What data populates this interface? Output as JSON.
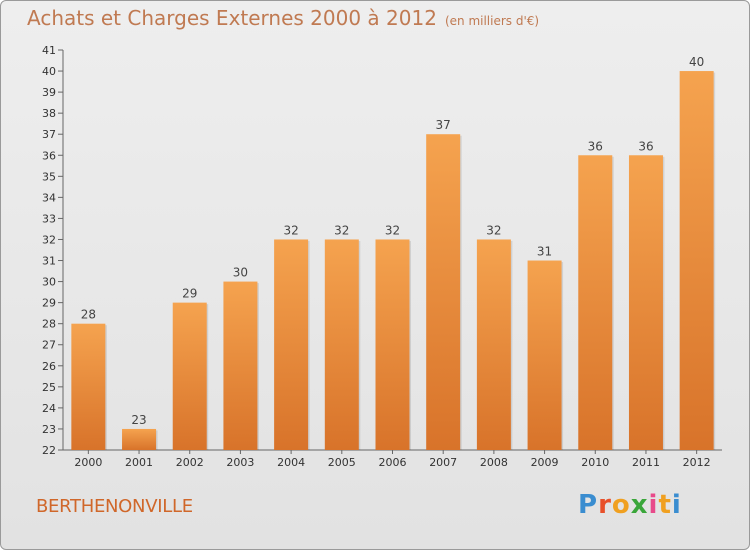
{
  "header": {
    "title": "Achats et Charges Externes 2000 à 2012",
    "unit": "(en milliers d'€)"
  },
  "footer": {
    "commune": "BERTHENONVILLE",
    "logo_letters": [
      "P",
      "r",
      "o",
      "x",
      "i",
      "t",
      "i"
    ]
  },
  "colors": {
    "bar_light": "#f5a34f",
    "bar_dark": "#d8732a",
    "title": "#c07a52",
    "commune": "#d0672a",
    "logo": [
      "#3a8dd0",
      "#e8502a",
      "#f0a020",
      "#3aa63a",
      "#e84a8a",
      "#f0a020",
      "#3a8dd0"
    ]
  },
  "chart_data": {
    "type": "bar",
    "categories": [
      "2000",
      "2001",
      "2002",
      "2003",
      "2004",
      "2005",
      "2006",
      "2007",
      "2008",
      "2009",
      "2010",
      "2011",
      "2012"
    ],
    "values": [
      28,
      23,
      29,
      30,
      32,
      32,
      32,
      37,
      32,
      31,
      36,
      36,
      40
    ],
    "title": "Achats et Charges Externes 2000 à 2012",
    "xlabel": "",
    "ylabel": "",
    "ylim": [
      22,
      41
    ],
    "yticks": [
      22,
      23,
      24,
      25,
      26,
      27,
      28,
      29,
      30,
      31,
      32,
      33,
      34,
      35,
      36,
      37,
      38,
      39,
      40,
      41
    ],
    "grid": false,
    "legend": "none"
  }
}
